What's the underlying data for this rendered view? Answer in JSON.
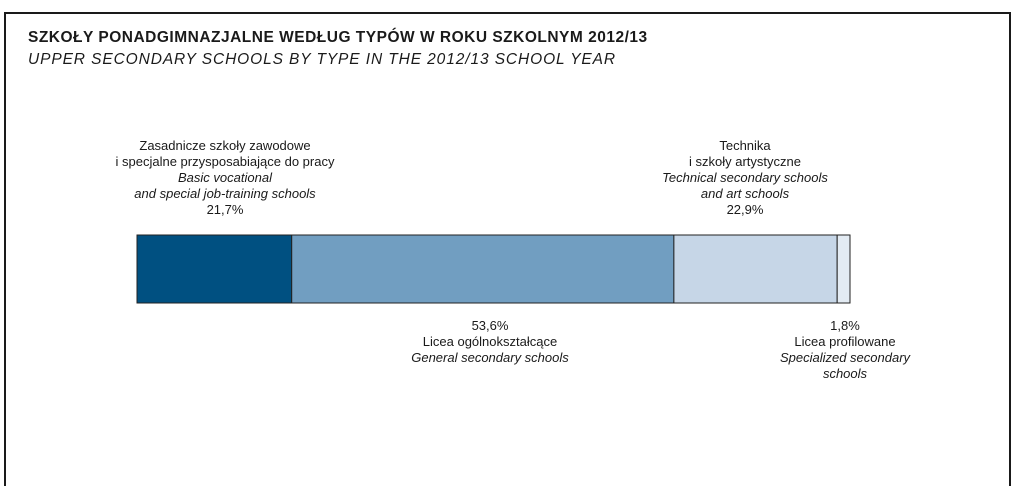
{
  "colors": {
    "frame": "#1a1a1a",
    "seg1": "#005081",
    "seg2": "#719ec1",
    "seg3": "#c6d6e7",
    "seg4": "#e3ebf3",
    "outline": "#222222"
  },
  "header": {
    "title_pl": "SZKOŁY PONADGIMNAZJALNE WEDŁUG TYPÓW W ROKU SZKOLNYM 2012/13",
    "title_en": "UPPER SECONDARY SCHOOLS BY TYPE IN THE 2012/13 SCHOOL YEAR"
  },
  "chart_data": {
    "type": "bar",
    "stacked": true,
    "orientation": "horizontal",
    "title": "SZKOŁY PONADGIMNAZJALNE WEDŁUG TYPÓW W ROKU SZKOLNYM 2012/13",
    "subtitle": "UPPER SECONDARY SCHOOLS BY TYPE IN THE 2012/13 SCHOOL YEAR",
    "unit": "%",
    "xlim": [
      0,
      100
    ],
    "segments": [
      {
        "label_pl": [
          "Zasadnicze szkoły zawodowe",
          "i specjalne przysposabiające do pracy"
        ],
        "label_en": [
          "Basic vocational",
          "and special job-training schools"
        ],
        "value": 21.7,
        "value_label": "21,7%",
        "color": "#005081"
      },
      {
        "label_pl": [
          "Licea ogólnokształcące"
        ],
        "label_en": [
          "General secondary schools"
        ],
        "value": 53.6,
        "value_label": "53,6%",
        "color": "#719ec1"
      },
      {
        "label_pl": [
          "Technika",
          "i szkoły artystyczne"
        ],
        "label_en": [
          "Technical secondary schools",
          "and art schools"
        ],
        "value": 22.9,
        "value_label": "22,9%",
        "color": "#c6d6e7"
      },
      {
        "label_pl": [
          "Licea profilowane"
        ],
        "label_en": [
          "Specialized secondary",
          "schools"
        ],
        "value": 1.8,
        "value_label": "1,8%",
        "color": "#e3ebf3"
      }
    ]
  }
}
